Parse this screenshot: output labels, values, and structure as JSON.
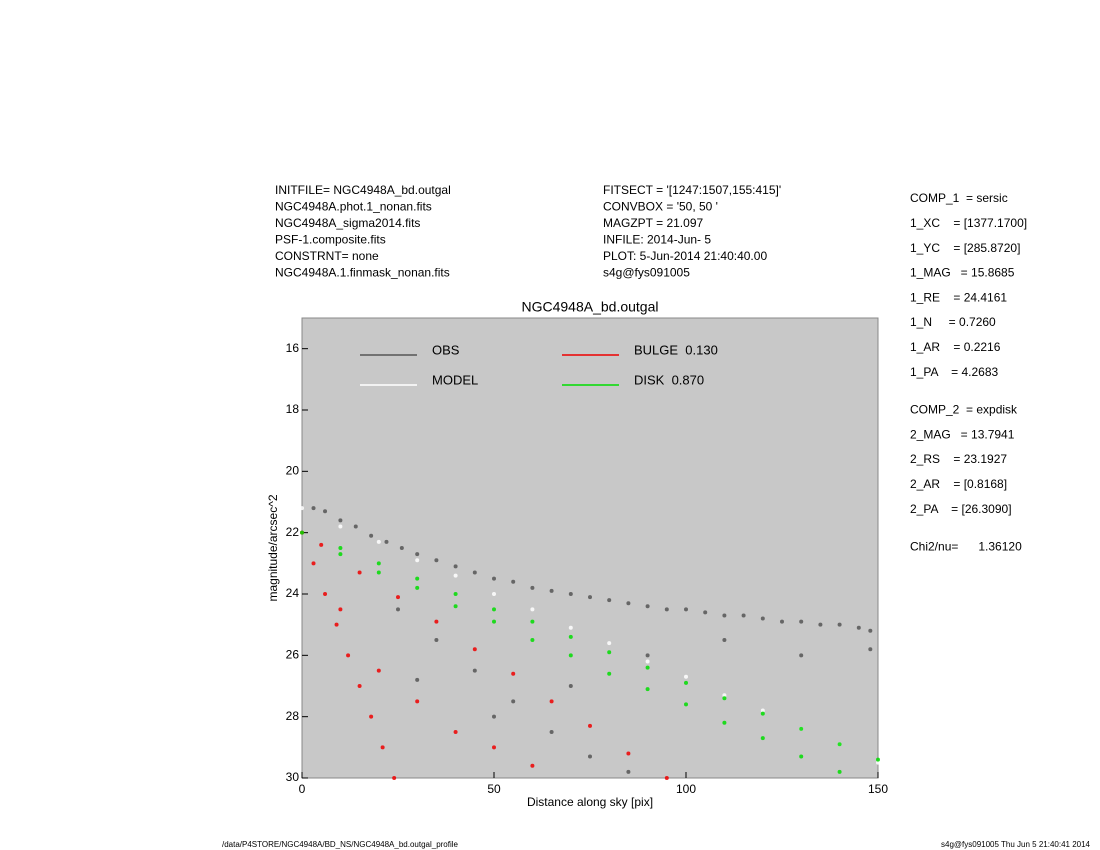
{
  "header": {
    "left_info": [
      "INITFILE= NGC4948A_bd.outgal",
      "NGC4948A.phot.1_nonan.fits",
      "NGC4948A_sigma2014.fits",
      "PSF-1.composite.fits",
      "CONSTRNT= none",
      "NGC4948A.1.finmask_nonan.fits"
    ],
    "mid_info": [
      "FITSECT = '[1247:1507,155:415]'",
      "CONVBOX = '50, 50  '",
      "MAGZPT =            21.097",
      "INFILE: 2014-Jun- 5",
      "PLOT:  5-Jun-2014 21:40:40.00",
      "s4g@fys091005"
    ],
    "params": [
      "COMP_1  = sersic",
      "1_XC    = [1377.1700]",
      "1_YC    = [285.8720]",
      "1_MAG   = 15.8685",
      "1_RE    = 24.4161",
      "1_N     = 0.7260",
      "1_AR    = 0.2216",
      "1_PA    = 4.2683",
      "COMP_2  = expdisk",
      "2_MAG   = 13.7941",
      "2_RS    = 23.1927",
      "2_AR    = [0.8168]",
      "2_PA    = [26.3090]",
      "Chi2/nu=      1.36120"
    ]
  },
  "footer": {
    "left": "/data/P4STORE/NGC4948A/BD_NS/NGC4948A_bd.outgal_profile",
    "right": "s4g@fys091005  Thu Jun  5 21:40:41 2014"
  },
  "chart_data": {
    "type": "scatter",
    "title": "NGC4948A_bd.outgal",
    "x_label": "Distance along sky [pix]",
    "y_label": "magnitude/arcsec^2",
    "xlim": [
      0,
      150
    ],
    "xticks": [
      0,
      50,
      100,
      150
    ],
    "ylim": [
      30,
      15
    ],
    "yticks": [
      16,
      18,
      20,
      22,
      24,
      26,
      28,
      30
    ],
    "background": "#c8c8c8",
    "series": [
      {
        "name": "OBS",
        "color": "#555555",
        "x": [
          3,
          6,
          10,
          14,
          18,
          22,
          26,
          30,
          35,
          40,
          45,
          50,
          55,
          60,
          65,
          70,
          75,
          80,
          85,
          90,
          95,
          100,
          105,
          110,
          115,
          120,
          125,
          130,
          135,
          140,
          145,
          148,
          25,
          35,
          45,
          55,
          65,
          75,
          85,
          30,
          50,
          70,
          90,
          110,
          130,
          148
        ],
        "values": [
          21.2,
          21.3,
          21.6,
          21.8,
          22.1,
          22.3,
          22.5,
          22.7,
          22.9,
          23.1,
          23.3,
          23.5,
          23.6,
          23.8,
          23.9,
          24.0,
          24.1,
          24.2,
          24.3,
          24.4,
          24.5,
          24.5,
          24.6,
          24.7,
          24.7,
          24.8,
          24.9,
          24.9,
          25.0,
          25.0,
          25.1,
          25.2,
          24.5,
          25.5,
          26.5,
          27.5,
          28.5,
          29.3,
          29.8,
          26.8,
          28.0,
          27.0,
          26.0,
          25.5,
          26.0,
          25.8
        ]
      },
      {
        "name": "MODEL",
        "color": "#ffffff",
        "x": [
          0,
          10,
          20,
          30,
          40,
          50,
          60,
          70,
          80,
          90,
          100,
          110,
          120,
          130,
          140,
          150
        ],
        "values": [
          21.2,
          21.8,
          22.3,
          22.9,
          23.4,
          24.0,
          24.5,
          25.1,
          25.6,
          26.2,
          26.7,
          27.3,
          27.8,
          28.4,
          28.9,
          29.5
        ]
      },
      {
        "name": "BULGE  0.130",
        "color": "#ee0000",
        "x": [
          0,
          3,
          6,
          9,
          12,
          15,
          18,
          21,
          24,
          5,
          15,
          25,
          35,
          45,
          55,
          65,
          75,
          85,
          95,
          10,
          20,
          30,
          40,
          50,
          60
        ],
        "values": [
          22,
          23,
          24,
          25,
          26,
          27,
          28,
          29,
          30,
          22.4,
          23.3,
          24.1,
          24.9,
          25.8,
          26.6,
          27.5,
          28.3,
          29.2,
          30.0,
          24.5,
          26.5,
          27.5,
          28.5,
          29.0,
          29.6
        ]
      },
      {
        "name": "DISK  0.870",
        "color": "#00dd00",
        "x": [
          0,
          10,
          20,
          30,
          40,
          50,
          60,
          70,
          80,
          90,
          100,
          110,
          120,
          130,
          140,
          150,
          10,
          20,
          30,
          40,
          50,
          60,
          70,
          80,
          90,
          100,
          110,
          120,
          130,
          140
        ],
        "values": [
          22.0,
          22.5,
          23.0,
          23.5,
          24.0,
          24.5,
          24.9,
          25.4,
          25.9,
          26.4,
          26.9,
          27.4,
          27.9,
          28.4,
          28.9,
          29.4,
          22.7,
          23.3,
          23.8,
          24.4,
          24.9,
          25.5,
          26.0,
          26.6,
          27.1,
          27.6,
          28.2,
          28.7,
          29.3,
          29.8
        ]
      }
    ]
  }
}
